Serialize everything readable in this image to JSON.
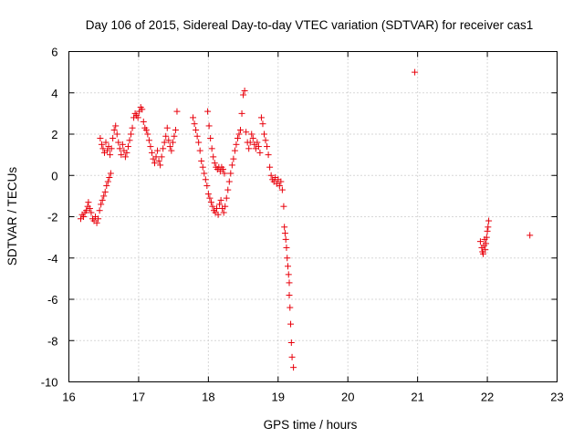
{
  "chart_data": {
    "type": "scatter",
    "title": "Day 106 of 2015, Sidereal Day-to-day VTEC variation (SDTVAR) for receiver cas1",
    "xlabel": "GPS time / hours",
    "ylabel": "SDTVAR / TECUs",
    "xlim": [
      16,
      23
    ],
    "ylim": [
      -10,
      6
    ],
    "xticks": [
      "16",
      "17",
      "18",
      "19",
      "20",
      "21",
      "22",
      "23"
    ],
    "yticks": [
      "6",
      "4",
      "2",
      "0",
      "-2",
      "-4",
      "-6",
      "-8",
      "-10"
    ],
    "grid": true,
    "marker": "+",
    "marker_color": "#e8000b",
    "series": [
      {
        "name": "cas1",
        "points": [
          [
            16.17,
            -2.1
          ],
          [
            16.19,
            -1.9
          ],
          [
            16.21,
            -2.0
          ],
          [
            16.23,
            -1.8
          ],
          [
            16.25,
            -1.7
          ],
          [
            16.27,
            -1.5
          ],
          [
            16.28,
            -1.3
          ],
          [
            16.3,
            -1.6
          ],
          [
            16.32,
            -1.8
          ],
          [
            16.34,
            -2.1
          ],
          [
            16.36,
            -2.2
          ],
          [
            16.38,
            -2.0
          ],
          [
            16.4,
            -2.3
          ],
          [
            16.42,
            -2.1
          ],
          [
            16.44,
            -1.7
          ],
          [
            16.46,
            -1.4
          ],
          [
            16.48,
            -1.2
          ],
          [
            16.5,
            -1.0
          ],
          [
            16.52,
            -0.8
          ],
          [
            16.54,
            -0.5
          ],
          [
            16.56,
            -0.3
          ],
          [
            16.58,
            -0.1
          ],
          [
            16.6,
            0.1
          ],
          [
            16.45,
            1.8
          ],
          [
            16.47,
            1.5
          ],
          [
            16.49,
            1.3
          ],
          [
            16.51,
            1.1
          ],
          [
            16.53,
            1.6
          ],
          [
            16.55,
            1.2
          ],
          [
            16.57,
            1.4
          ],
          [
            16.59,
            1.0
          ],
          [
            16.61,
            1.3
          ],
          [
            16.63,
            1.8
          ],
          [
            16.65,
            2.2
          ],
          [
            16.67,
            2.4
          ],
          [
            16.69,
            2.0
          ],
          [
            16.71,
            1.6
          ],
          [
            16.73,
            1.3
          ],
          [
            16.75,
            1.0
          ],
          [
            16.77,
            1.5
          ],
          [
            16.79,
            1.2
          ],
          [
            16.81,
            0.9
          ],
          [
            16.83,
            1.1
          ],
          [
            16.85,
            1.4
          ],
          [
            16.87,
            1.7
          ],
          [
            16.89,
            2.0
          ],
          [
            16.91,
            2.3
          ],
          [
            16.93,
            2.8
          ],
          [
            16.95,
            3.0
          ],
          [
            16.97,
            2.9
          ],
          [
            16.99,
            2.8
          ],
          [
            17.01,
            3.1
          ],
          [
            17.03,
            3.3
          ],
          [
            17.05,
            3.2
          ],
          [
            17.07,
            2.6
          ],
          [
            17.09,
            2.3
          ],
          [
            17.11,
            2.2
          ],
          [
            17.13,
            2.0
          ],
          [
            17.15,
            1.7
          ],
          [
            17.17,
            1.4
          ],
          [
            17.19,
            1.1
          ],
          [
            17.21,
            0.8
          ],
          [
            17.23,
            0.6
          ],
          [
            17.25,
            0.9
          ],
          [
            17.27,
            1.2
          ],
          [
            17.29,
            0.7
          ],
          [
            17.31,
            0.5
          ],
          [
            17.33,
            0.9
          ],
          [
            17.35,
            1.3
          ],
          [
            17.37,
            1.6
          ],
          [
            17.39,
            1.9
          ],
          [
            17.41,
            2.3
          ],
          [
            17.43,
            1.7
          ],
          [
            17.45,
            1.4
          ],
          [
            17.47,
            1.2
          ],
          [
            17.49,
            1.6
          ],
          [
            17.51,
            1.9
          ],
          [
            17.53,
            2.2
          ],
          [
            17.55,
            3.1
          ],
          [
            17.78,
            2.8
          ],
          [
            17.8,
            2.5
          ],
          [
            17.82,
            2.2
          ],
          [
            17.84,
            1.9
          ],
          [
            17.86,
            1.6
          ],
          [
            17.88,
            1.2
          ],
          [
            17.9,
            0.7
          ],
          [
            17.92,
            0.4
          ],
          [
            17.94,
            0.1
          ],
          [
            17.96,
            -0.2
          ],
          [
            17.98,
            -0.5
          ],
          [
            17.99,
            3.1
          ],
          [
            18.0,
            -0.9
          ],
          [
            18.02,
            -1.1
          ],
          [
            18.04,
            -1.3
          ],
          [
            18.06,
            -1.5
          ],
          [
            18.08,
            -1.7
          ],
          [
            18.1,
            -1.8
          ],
          [
            18.12,
            -1.6
          ],
          [
            18.14,
            -1.9
          ],
          [
            18.16,
            -1.4
          ],
          [
            18.18,
            -1.2
          ],
          [
            18.2,
            -1.6
          ],
          [
            18.22,
            -1.8
          ],
          [
            18.24,
            -1.5
          ],
          [
            18.26,
            -1.1
          ],
          [
            18.28,
            -0.7
          ],
          [
            18.3,
            -0.3
          ],
          [
            18.32,
            0.1
          ],
          [
            18.34,
            0.5
          ],
          [
            18.36,
            0.8
          ],
          [
            18.38,
            1.2
          ],
          [
            18.4,
            1.5
          ],
          [
            18.42,
            1.8
          ],
          [
            18.44,
            2.0
          ],
          [
            18.46,
            2.2
          ],
          [
            18.48,
            3.0
          ],
          [
            18.5,
            3.9
          ],
          [
            18.52,
            4.1
          ],
          [
            18.54,
            2.1
          ],
          [
            18.56,
            1.6
          ],
          [
            18.58,
            1.3
          ],
          [
            18.6,
            1.6
          ],
          [
            18.62,
            2.0
          ],
          [
            18.64,
            1.8
          ],
          [
            18.66,
            1.5
          ],
          [
            18.68,
            1.3
          ],
          [
            18.7,
            1.6
          ],
          [
            18.72,
            1.4
          ],
          [
            18.74,
            1.1
          ],
          [
            18.76,
            2.8
          ],
          [
            18.78,
            2.5
          ],
          [
            18.8,
            2.0
          ],
          [
            18.82,
            1.7
          ],
          [
            18.84,
            1.4
          ],
          [
            18.86,
            1.0
          ],
          [
            18.01,
            2.4
          ],
          [
            18.03,
            1.8
          ],
          [
            18.05,
            1.3
          ],
          [
            18.07,
            0.9
          ],
          [
            18.09,
            0.6
          ],
          [
            18.11,
            0.4
          ],
          [
            18.13,
            0.3
          ],
          [
            18.15,
            0.4
          ],
          [
            18.17,
            0.2
          ],
          [
            18.19,
            0.4
          ],
          [
            18.21,
            0.3
          ],
          [
            18.23,
            0.1
          ],
          [
            18.88,
            0.4
          ],
          [
            18.9,
            0.0
          ],
          [
            18.92,
            -0.2
          ],
          [
            18.94,
            -0.3
          ],
          [
            18.96,
            -0.1
          ],
          [
            18.98,
            -0.4
          ],
          [
            19.0,
            -0.2
          ],
          [
            19.02,
            -0.5
          ],
          [
            19.04,
            -0.3
          ],
          [
            19.06,
            -0.7
          ],
          [
            19.08,
            -1.5
          ],
          [
            19.09,
            -2.5
          ],
          [
            19.1,
            -2.8
          ],
          [
            19.11,
            -3.1
          ],
          [
            19.12,
            -3.5
          ],
          [
            19.13,
            -4.0
          ],
          [
            19.14,
            -4.4
          ],
          [
            19.15,
            -4.8
          ],
          [
            19.16,
            -5.2
          ],
          [
            19.16,
            -5.8
          ],
          [
            19.17,
            -6.4
          ],
          [
            19.18,
            -7.2
          ],
          [
            19.19,
            -8.1
          ],
          [
            19.2,
            -8.8
          ],
          [
            19.22,
            -9.3
          ],
          [
            20.96,
            5.0
          ],
          [
            21.9,
            -3.2
          ],
          [
            21.92,
            -3.5
          ],
          [
            21.93,
            -3.7
          ],
          [
            21.94,
            -3.8
          ],
          [
            21.95,
            -3.4
          ],
          [
            21.96,
            -3.1
          ],
          [
            21.97,
            -3.6
          ],
          [
            21.98,
            -3.3
          ],
          [
            21.99,
            -3.0
          ],
          [
            22.0,
            -2.7
          ],
          [
            22.01,
            -2.5
          ],
          [
            22.02,
            -2.2
          ],
          [
            22.61,
            -2.9
          ]
        ]
      }
    ]
  }
}
